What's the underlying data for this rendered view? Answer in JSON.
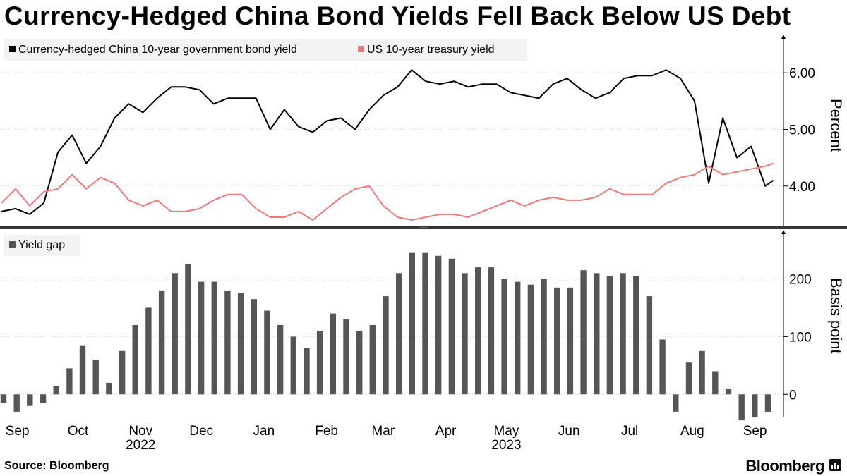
{
  "chart_data": [
    {
      "type": "line",
      "title": "Currency-Hedged China Bond Yields Fell Back Below US Debt",
      "ylabel": "Percent",
      "ylim": [
        3.3,
        6.6
      ],
      "yticks": [
        4.0,
        5.0,
        6.0
      ],
      "ytick_labels": [
        "4.00",
        "5.00",
        "6.00"
      ],
      "legend_position": "top-left",
      "grid": true,
      "x": [
        "2022-08-29",
        "2022-09-05",
        "2022-09-12",
        "2022-09-19",
        "2022-09-26",
        "2022-10-03",
        "2022-10-10",
        "2022-10-17",
        "2022-10-24",
        "2022-10-31",
        "2022-11-07",
        "2022-11-14",
        "2022-11-21",
        "2022-11-28",
        "2022-12-05",
        "2022-12-12",
        "2022-12-19",
        "2022-12-26",
        "2023-01-02",
        "2023-01-09",
        "2023-01-16",
        "2023-01-23",
        "2023-01-30",
        "2023-02-06",
        "2023-02-13",
        "2023-02-20",
        "2023-02-27",
        "2023-03-06",
        "2023-03-13",
        "2023-03-20",
        "2023-03-27",
        "2023-04-03",
        "2023-04-10",
        "2023-04-17",
        "2023-04-24",
        "2023-05-01",
        "2023-05-08",
        "2023-05-15",
        "2023-05-22",
        "2023-05-29",
        "2023-06-05",
        "2023-06-12",
        "2023-06-19",
        "2023-06-26",
        "2023-07-03",
        "2023-07-10",
        "2023-07-17",
        "2023-07-24",
        "2023-07-31",
        "2023-08-07",
        "2023-08-14",
        "2023-08-21",
        "2023-08-28",
        "2023-09-04",
        "2023-09-11",
        "2023-09-15"
      ],
      "series": [
        {
          "name": "Currency-hedged China 10-year government bond yield",
          "color": "#000000",
          "values": [
            3.55,
            3.6,
            3.5,
            3.7,
            4.6,
            4.9,
            4.4,
            4.7,
            5.2,
            5.45,
            5.3,
            5.55,
            5.75,
            5.75,
            5.7,
            5.45,
            5.55,
            5.55,
            5.55,
            5.0,
            5.35,
            5.05,
            4.95,
            5.15,
            5.2,
            5.0,
            5.35,
            5.6,
            5.75,
            6.05,
            5.85,
            5.8,
            5.85,
            5.75,
            5.8,
            5.8,
            5.65,
            5.6,
            5.55,
            5.8,
            5.9,
            5.7,
            5.55,
            5.65,
            5.9,
            5.95,
            5.95,
            6.05,
            5.9,
            5.5,
            4.05,
            5.2,
            4.5,
            4.7,
            4.0,
            4.1
          ]
        },
        {
          "name": "US 10-year treasury yield",
          "color": "#f07878",
          "values": [
            3.7,
            3.95,
            3.65,
            3.9,
            3.95,
            4.2,
            3.95,
            4.15,
            4.05,
            3.75,
            3.65,
            3.75,
            3.55,
            3.55,
            3.6,
            3.75,
            3.85,
            3.85,
            3.6,
            3.45,
            3.45,
            3.55,
            3.4,
            3.6,
            3.8,
            3.95,
            4.0,
            3.65,
            3.45,
            3.4,
            3.45,
            3.5,
            3.5,
            3.45,
            3.55,
            3.65,
            3.75,
            3.65,
            3.75,
            3.8,
            3.75,
            3.75,
            3.8,
            3.95,
            3.85,
            3.85,
            3.85,
            4.05,
            4.15,
            4.2,
            4.35,
            4.2,
            4.25,
            4.3,
            4.35,
            4.4
          ]
        }
      ]
    },
    {
      "type": "bar",
      "ylabel": "Basis point",
      "ylim": [
        -40,
        280
      ],
      "yticks": [
        0,
        100,
        200
      ],
      "ytick_labels": [
        "0",
        "100",
        "200"
      ],
      "legend_position": "top-left",
      "grid": true,
      "x_labels": [
        {
          "month": "Sep",
          "date": "2022-09-01"
        },
        {
          "month": "Oct",
          "date": "2022-10-01"
        },
        {
          "month": "Nov",
          "date": "2022-11-01"
        },
        {
          "month": "Dec",
          "date": "2022-12-01"
        },
        {
          "month": "Jan",
          "date": "2023-01-01"
        },
        {
          "month": "Feb",
          "date": "2023-02-01"
        },
        {
          "month": "Mar",
          "date": "2023-03-01"
        },
        {
          "month": "Apr",
          "date": "2023-04-01"
        },
        {
          "month": "May",
          "date": "2023-05-01"
        },
        {
          "month": "Jun",
          "date": "2023-06-01"
        },
        {
          "month": "Jul",
          "date": "2023-07-01"
        },
        {
          "month": "Aug",
          "date": "2023-08-01"
        },
        {
          "month": "Sep",
          "date": "2023-09-01"
        }
      ],
      "year_labels": [
        {
          "year": "2022",
          "date": "2022-11-01"
        },
        {
          "year": "2023",
          "date": "2023-05-01"
        }
      ],
      "series": [
        {
          "name": "Yield gap",
          "color": "#555555",
          "values": [
            -15,
            -30,
            -20,
            -15,
            15,
            45,
            85,
            60,
            20,
            75,
            120,
            150,
            180,
            210,
            225,
            195,
            195,
            180,
            175,
            165,
            145,
            120,
            100,
            80,
            110,
            140,
            130,
            110,
            120,
            170,
            210,
            245,
            245,
            240,
            235,
            210,
            220,
            220,
            200,
            195,
            190,
            200,
            185,
            185,
            215,
            210,
            205,
            210,
            205,
            170,
            95,
            -30,
            55,
            75,
            40,
            10,
            -45,
            -40,
            -30
          ]
        }
      ]
    }
  ],
  "legend_top": [
    {
      "label": "Currency-hedged China 10-year government bond yield",
      "color": "#000000"
    },
    {
      "label": "US 10-year treasury yield",
      "color": "#f07878"
    }
  ],
  "legend_bottom": [
    {
      "label": "Yield gap",
      "color": "#555555"
    }
  ],
  "footer": {
    "source": "Source:  Bloomberg",
    "brand": "Bloomberg",
    "brand_icon": "bloomberg-bars-icon"
  }
}
